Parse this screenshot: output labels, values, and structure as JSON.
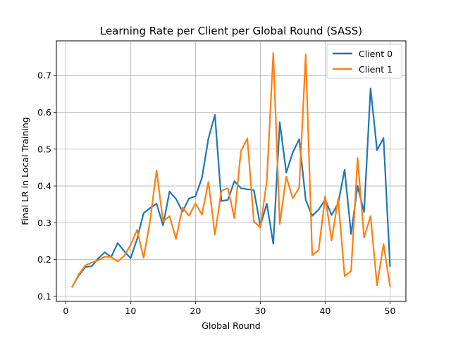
{
  "chart_data": {
    "type": "line",
    "title": "Learning Rate per Client per Global Round (SASS)",
    "xlabel": "Global Round",
    "ylabel": "Final LR in Local Training",
    "xlim": [
      -1.45,
      52.45
    ],
    "ylim": [
      0.0866,
      0.794
    ],
    "xticks": [
      0,
      10,
      20,
      30,
      40,
      50
    ],
    "yticks": [
      0.1,
      0.2,
      0.3,
      0.4,
      0.5,
      0.6,
      0.7
    ],
    "grid": true,
    "legend": "top-right",
    "x": [
      1,
      2,
      3,
      4,
      5,
      6,
      7,
      8,
      9,
      10,
      11,
      12,
      13,
      14,
      15,
      16,
      17,
      18,
      19,
      20,
      21,
      22,
      23,
      24,
      25,
      26,
      27,
      28,
      29,
      30,
      31,
      32,
      33,
      34,
      35,
      36,
      37,
      38,
      39,
      40,
      41,
      42,
      43,
      44,
      45,
      46,
      47,
      48,
      49,
      50
    ],
    "series": [
      {
        "name": "Client 0",
        "color": "#1f77b4",
        "values": [
          0.127,
          0.157,
          0.18,
          0.182,
          0.203,
          0.22,
          0.207,
          0.245,
          0.223,
          0.204,
          0.256,
          0.326,
          0.34,
          0.352,
          0.293,
          0.385,
          0.365,
          0.33,
          0.366,
          0.372,
          0.422,
          0.529,
          0.593,
          0.359,
          0.362,
          0.413,
          0.394,
          0.391,
          0.389,
          0.292,
          0.352,
          0.243,
          0.573,
          0.436,
          0.491,
          0.527,
          0.362,
          0.319,
          0.336,
          0.363,
          0.321,
          0.353,
          0.444,
          0.269,
          0.4,
          0.329,
          0.665,
          0.497,
          0.53,
          0.183
        ]
      },
      {
        "name": "Client 1",
        "color": "#ff7f0e",
        "values": [
          0.126,
          0.16,
          0.184,
          0.192,
          0.198,
          0.208,
          0.207,
          0.195,
          0.21,
          0.24,
          0.281,
          0.205,
          0.304,
          0.442,
          0.304,
          0.318,
          0.256,
          0.342,
          0.319,
          0.352,
          0.322,
          0.411,
          0.268,
          0.387,
          0.394,
          0.312,
          0.494,
          0.529,
          0.304,
          0.287,
          0.413,
          0.761,
          0.297,
          0.425,
          0.366,
          0.395,
          0.757,
          0.212,
          0.226,
          0.372,
          0.252,
          0.365,
          0.155,
          0.169,
          0.476,
          0.26,
          0.318,
          0.13,
          0.242,
          0.128
        ]
      }
    ]
  }
}
